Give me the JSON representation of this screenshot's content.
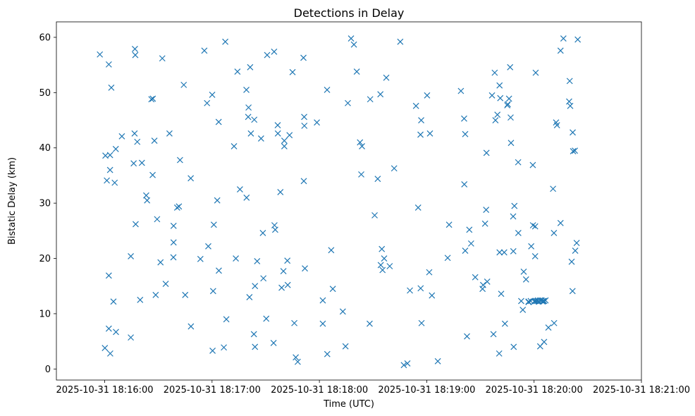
{
  "chart_data": {
    "type": "scatter",
    "title": "Detections in Delay",
    "xlabel": "Time (UTC)",
    "ylabel": "Bistatic Delay (km)",
    "x_tick_labels": [
      "2025-10-31 18:16:00",
      "2025-10-31 18:17:00",
      "2025-10-31 18:18:00",
      "2025-10-31 18:19:00",
      "2025-10-31 18:20:00",
      "2025-10-31 18:21:00"
    ],
    "y_ticks": [
      0,
      10,
      20,
      30,
      40,
      50,
      60
    ],
    "ylim": [
      -2.0,
      62.8
    ],
    "x_unit": "seconds after 2025-10-31 18:16:00",
    "xlim_seconds": [
      -27,
      300
    ],
    "marker": "x",
    "color": "#1f77b4",
    "grid": false,
    "points": [
      [
        -2.7,
        56.9
      ],
      [
        2.3,
        55.1
      ],
      [
        3.7,
        50.9
      ],
      [
        0.4,
        38.6
      ],
      [
        3.0,
        38.7
      ],
      [
        1.2,
        34.1
      ],
      [
        3.0,
        36.0
      ],
      [
        6.2,
        39.8
      ],
      [
        9.6,
        42.1
      ],
      [
        5.6,
        33.7
      ],
      [
        2.3,
        16.9
      ],
      [
        2.3,
        7.3
      ],
      [
        4.9,
        12.2
      ],
      [
        6.3,
        6.7
      ],
      [
        0.1,
        3.8
      ],
      [
        3.1,
        2.8
      ],
      [
        14.6,
        5.7
      ],
      [
        14.6,
        20.4
      ],
      [
        16.9,
        57.9
      ],
      [
        17.1,
        56.8
      ],
      [
        16.7,
        42.6
      ],
      [
        18.2,
        41.1
      ],
      [
        16.2,
        37.2
      ],
      [
        20.8,
        37.3
      ],
      [
        17.3,
        26.2
      ],
      [
        19.8,
        12.5
      ],
      [
        23.7,
        30.5
      ],
      [
        23.2,
        31.4
      ],
      [
        26.1,
        48.8
      ],
      [
        26.9,
        48.9
      ],
      [
        27.8,
        41.3
      ],
      [
        26.8,
        35.1
      ],
      [
        29.3,
        27.1
      ],
      [
        28.5,
        13.4
      ],
      [
        31.2,
        19.3
      ],
      [
        34.1,
        15.4
      ],
      [
        32.2,
        56.2
      ],
      [
        36.2,
        42.6
      ],
      [
        38.5,
        25.9
      ],
      [
        38.5,
        22.9
      ],
      [
        38.4,
        20.2
      ],
      [
        40.5,
        29.2
      ],
      [
        41.5,
        29.4
      ],
      [
        42.1,
        37.8
      ],
      [
        44.2,
        51.4
      ],
      [
        45.0,
        13.4
      ],
      [
        48.2,
        7.7
      ],
      [
        48.1,
        34.5
      ],
      [
        53.5,
        19.9
      ],
      [
        55.7,
        57.6
      ],
      [
        57.2,
        48.1
      ],
      [
        57.9,
        22.2
      ],
      [
        60.1,
        49.6
      ],
      [
        60.6,
        14.1
      ],
      [
        61.0,
        26.1
      ],
      [
        60.3,
        3.3
      ],
      [
        62.9,
        30.5
      ],
      [
        63.8,
        17.8
      ],
      [
        63.7,
        44.7
      ],
      [
        66.6,
        3.9
      ],
      [
        67.4,
        59.2
      ],
      [
        68.0,
        9.0
      ],
      [
        72.3,
        40.3
      ],
      [
        74.2,
        53.8
      ],
      [
        73.3,
        20.0
      ],
      [
        75.6,
        32.5
      ],
      [
        79.2,
        50.5
      ],
      [
        79.3,
        31.0
      ],
      [
        80.4,
        47.3
      ],
      [
        80.2,
        45.6
      ],
      [
        81.3,
        54.6
      ],
      [
        81.7,
        42.6
      ],
      [
        80.9,
        13.0
      ],
      [
        83.6,
        45.1
      ],
      [
        83.4,
        6.3
      ],
      [
        84.0,
        15.0
      ],
      [
        84.0,
        4.0
      ],
      [
        85.2,
        19.5
      ],
      [
        87.4,
        41.7
      ],
      [
        88.4,
        24.6
      ],
      [
        88.7,
        16.4
      ],
      [
        90.3,
        9.1
      ],
      [
        90.8,
        56.8
      ],
      [
        94.7,
        57.4
      ],
      [
        94.4,
        4.7
      ],
      [
        94.9,
        26.0
      ],
      [
        95.3,
        25.2
      ],
      [
        96.7,
        44.1
      ],
      [
        96.8,
        42.6
      ],
      [
        98.2,
        32.0
      ],
      [
        98.9,
        14.7
      ],
      [
        100.4,
        41.3
      ],
      [
        100.4,
        40.3
      ],
      [
        99.9,
        17.7
      ],
      [
        102.1,
        19.6
      ],
      [
        102.3,
        15.2
      ],
      [
        103.3,
        42.3
      ],
      [
        105.0,
        53.7
      ],
      [
        106.0,
        8.3
      ],
      [
        106.8,
        2.1
      ],
      [
        107.9,
        1.3
      ],
      [
        111.1,
        56.3
      ],
      [
        111.5,
        45.6
      ],
      [
        111.6,
        44.0
      ],
      [
        111.3,
        34.0
      ],
      [
        111.9,
        18.2
      ],
      [
        118.6,
        44.6
      ],
      [
        121.9,
        8.2
      ],
      [
        121.9,
        12.4
      ],
      [
        124.3,
        50.5
      ],
      [
        124.4,
        2.7
      ],
      [
        126.6,
        21.5
      ],
      [
        127.5,
        14.5
      ],
      [
        133.1,
        10.4
      ],
      [
        134.6,
        4.1
      ],
      [
        135.9,
        48.1
      ],
      [
        137.7,
        59.8
      ],
      [
        139.3,
        58.7
      ],
      [
        140.9,
        53.8
      ],
      [
        142.7,
        41.0
      ],
      [
        143.4,
        35.2
      ],
      [
        143.8,
        40.3
      ],
      [
        148.1,
        8.2
      ],
      [
        148.4,
        48.8
      ],
      [
        150.9,
        27.8
      ],
      [
        152.6,
        34.4
      ],
      [
        154.1,
        49.7
      ],
      [
        154.3,
        18.8
      ],
      [
        154.9,
        21.7
      ],
      [
        155.3,
        17.9
      ],
      [
        156.2,
        20.0
      ],
      [
        157.4,
        52.7
      ],
      [
        159.3,
        18.6
      ],
      [
        161.8,
        36.3
      ],
      [
        165.2,
        59.2
      ],
      [
        167.2,
        0.7
      ],
      [
        169.2,
        1.0
      ],
      [
        170.6,
        14.2
      ],
      [
        174.0,
        47.6
      ],
      [
        175.2,
        29.2
      ],
      [
        176.5,
        42.4
      ],
      [
        176.9,
        45.0
      ],
      [
        177.1,
        8.3
      ],
      [
        180.2,
        49.5
      ],
      [
        181.4,
        17.5
      ],
      [
        181.8,
        42.6
      ],
      [
        182.9,
        13.3
      ],
      [
        176.6,
        14.6
      ],
      [
        186.2,
        1.4
      ],
      [
        191.7,
        20.1
      ],
      [
        192.5,
        26.1
      ],
      [
        199.1,
        50.3
      ],
      [
        200.9,
        45.3
      ],
      [
        201.0,
        33.4
      ],
      [
        201.5,
        42.5
      ],
      [
        201.5,
        21.4
      ],
      [
        202.5,
        5.9
      ],
      [
        203.8,
        25.2
      ],
      [
        204.8,
        22.7
      ],
      [
        207.1,
        16.6
      ],
      [
        211.2,
        14.5
      ],
      [
        211.5,
        15.2
      ],
      [
        212.6,
        26.3
      ],
      [
        213.2,
        28.8
      ],
      [
        213.4,
        39.1
      ],
      [
        213.8,
        15.8
      ],
      [
        216.5,
        49.5
      ],
      [
        218.0,
        53.6
      ],
      [
        217.3,
        6.3
      ],
      [
        218.4,
        45.0
      ],
      [
        219.5,
        46.0
      ],
      [
        220.7,
        51.3
      ],
      [
        221.1,
        49.0
      ],
      [
        220.7,
        21.1
      ],
      [
        221.6,
        13.6
      ],
      [
        220.5,
        2.8
      ],
      [
        223.3,
        21.1
      ],
      [
        223.7,
        8.2
      ],
      [
        225.0,
        47.7
      ],
      [
        225.3,
        47.9
      ],
      [
        226.0,
        48.9
      ],
      [
        226.9,
        45.5
      ],
      [
        226.6,
        54.6
      ],
      [
        227.1,
        40.9
      ],
      [
        228.3,
        27.6
      ],
      [
        228.4,
        21.3
      ],
      [
        229.0,
        29.5
      ],
      [
        228.6,
        4.0
      ],
      [
        231.1,
        37.4
      ],
      [
        231.2,
        24.6
      ],
      [
        233.7,
        10.7
      ],
      [
        234.2,
        17.6
      ],
      [
        235.5,
        16.2
      ],
      [
        236.9,
        12.1
      ],
      [
        236.9,
        12.2
      ],
      [
        238.1,
        12.3
      ],
      [
        238.4,
        22.2
      ],
      [
        239.3,
        36.9
      ],
      [
        239.4,
        26.0
      ],
      [
        240.6,
        20.4
      ],
      [
        240.6,
        25.8
      ],
      [
        240.9,
        53.6
      ],
      [
        240.1,
        12.2
      ],
      [
        241.0,
        12.3
      ],
      [
        241.8,
        12.3
      ],
      [
        242.6,
        12.2
      ],
      [
        243.4,
        12.4
      ],
      [
        244.2,
        12.4
      ],
      [
        245.0,
        12.3
      ],
      [
        245.6,
        12.3
      ],
      [
        246.4,
        12.4
      ],
      [
        240.5,
        12.3
      ],
      [
        242.2,
        12.4
      ],
      [
        244.8,
        12.2
      ],
      [
        243.4,
        4.1
      ],
      [
        245.6,
        4.9
      ],
      [
        248.0,
        7.5
      ],
      [
        232.8,
        12.3
      ],
      [
        251.2,
        8.3
      ],
      [
        251.1,
        24.6
      ],
      [
        250.6,
        32.6
      ],
      [
        252.3,
        44.6
      ],
      [
        252.8,
        44.1
      ],
      [
        254.8,
        57.6
      ],
      [
        254.8,
        26.4
      ],
      [
        256.4,
        59.8
      ],
      [
        259.6,
        48.4
      ],
      [
        260.2,
        47.6
      ],
      [
        259.9,
        52.1
      ],
      [
        261.0,
        19.4
      ],
      [
        261.5,
        14.1
      ],
      [
        261.6,
        42.8
      ],
      [
        261.8,
        39.4
      ],
      [
        262.8,
        39.5
      ],
      [
        263.0,
        21.4
      ],
      [
        263.8,
        22.8
      ],
      [
        264.4,
        59.6
      ]
    ]
  }
}
